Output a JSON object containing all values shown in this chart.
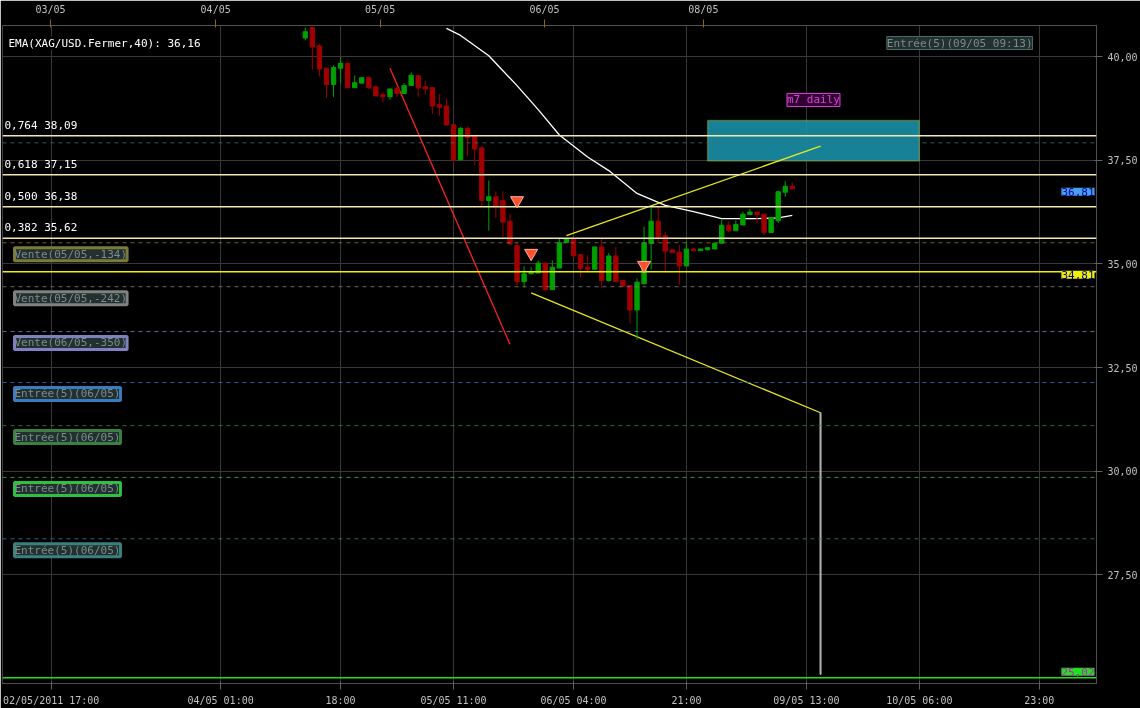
{
  "chart_data": {
    "type": "candlestick",
    "categories": [
      null,
      null,
      null,
      null,
      null,
      null,
      "02/05/2011 17:00",
      null,
      null,
      null,
      null,
      null,
      null,
      null,
      null,
      null,
      null,
      null,
      null,
      null,
      null,
      null,
      null,
      null,
      null,
      null,
      null,
      null,
      null,
      null,
      "04/05 01:00",
      null,
      null,
      null,
      null,
      null,
      null,
      null,
      null,
      null,
      null,
      null,
      null,
      null,
      null,
      null,
      null,
      "18:00",
      null,
      null,
      null,
      null,
      null,
      null,
      null,
      null,
      null,
      null,
      null,
      null,
      null,
      null,
      null,
      "05/05 11:00",
      null,
      null,
      null,
      null,
      null,
      null,
      null,
      null,
      null,
      null,
      null,
      null,
      null,
      null,
      null,
      null,
      "06/05 04:00",
      null,
      null,
      null,
      null,
      null,
      null,
      null,
      null,
      null,
      null,
      null,
      null,
      null,
      null,
      null,
      "21:00",
      null,
      null,
      null,
      null,
      null,
      null,
      null,
      null,
      null,
      null,
      null,
      null,
      null,
      null,
      null,
      null,
      "09/05 13:00",
      null,
      null,
      null,
      null,
      null,
      null,
      null,
      null,
      null,
      null,
      null,
      null,
      null,
      null,
      null,
      "10/05 06:00",
      null,
      null,
      null,
      null,
      null,
      null,
      null,
      null,
      null,
      null,
      null,
      null,
      null,
      null,
      null,
      null,
      "23:00",
      null,
      null,
      null,
      null,
      null,
      null,
      null,
      null
    ],
    "ohlc": [
      null,
      null,
      null,
      null,
      null,
      null,
      null,
      null,
      null,
      null,
      null,
      null,
      null,
      null,
      null,
      null,
      null,
      null,
      null,
      null,
      null,
      null,
      null,
      null,
      null,
      null,
      null,
      null,
      null,
      null,
      null,
      null,
      null,
      null,
      null,
      null,
      null,
      null,
      null,
      null,
      null,
      null,
      [
        40.45,
        40.7,
        40.4,
        40.6
      ],
      [
        40.7,
        40.7,
        39.69,
        40.23
      ],
      [
        40.26,
        40.31,
        39.52,
        39.7
      ],
      [
        39.72,
        39.72,
        39.0,
        39.33
      ],
      [
        39.33,
        39.79,
        39.03,
        39.74
      ],
      [
        39.72,
        39.99,
        39.36,
        39.84
      ],
      [
        39.84,
        39.84,
        39.25,
        39.25
      ],
      [
        39.25,
        39.54,
        39.25,
        39.37
      ],
      [
        39.36,
        39.49,
        39.36,
        39.49
      ],
      [
        39.49,
        39.52,
        39.22,
        39.25
      ],
      [
        39.27,
        39.3,
        39.05,
        39.05
      ],
      [
        39.08,
        39.15,
        38.9,
        39.03
      ],
      [
        39.03,
        39.22,
        38.96,
        39.22
      ],
      [
        39.23,
        39.28,
        39.03,
        39.11
      ],
      [
        39.11,
        39.36,
        39.11,
        39.3
      ],
      [
        39.3,
        39.62,
        39.3,
        39.55
      ],
      [
        39.54,
        39.54,
        39.03,
        39.25
      ],
      [
        39.27,
        39.42,
        39.08,
        39.22
      ],
      [
        39.25,
        39.25,
        38.62,
        38.81
      ],
      [
        38.84,
        39.1,
        38.57,
        38.78
      ],
      [
        38.81,
        38.99,
        38.35,
        38.35
      ],
      [
        38.36,
        38.36,
        37.43,
        37.51
      ],
      [
        37.51,
        38.3,
        37.51,
        38.27
      ],
      [
        38.27,
        38.31,
        37.6,
        38.04
      ],
      [
        38.07,
        38.07,
        37.39,
        37.77
      ],
      [
        37.8,
        37.84,
        36.38,
        36.53
      ],
      [
        36.53,
        37.01,
        35.8,
        36.62
      ],
      [
        36.62,
        36.75,
        36.11,
        36.38
      ],
      [
        36.53,
        36.75,
        35.66,
        36.01
      ],
      [
        36.03,
        36.2,
        35.45,
        35.48
      ],
      [
        35.44,
        35.54,
        34.48,
        34.57
      ],
      [
        34.57,
        34.94,
        34.43,
        34.76
      ],
      [
        34.76,
        34.92,
        34.76,
        34.8
      ],
      [
        34.78,
        35.08,
        34.78,
        35.02
      ],
      [
        35.02,
        35.02,
        34.34,
        34.38
      ],
      [
        34.38,
        35.09,
        34.38,
        34.92
      ],
      [
        34.9,
        35.63,
        34.9,
        35.51
      ],
      [
        35.51,
        35.63,
        35.51,
        35.61
      ],
      [
        35.61,
        35.61,
        35.15,
        35.2
      ],
      [
        35.22,
        35.22,
        34.68,
        34.89
      ],
      [
        34.92,
        35.21,
        34.8,
        34.87
      ],
      [
        34.87,
        35.41,
        34.87,
        35.41
      ],
      [
        35.41,
        35.61,
        34.41,
        34.6
      ],
      [
        34.6,
        35.26,
        34.57,
        35.19
      ],
      [
        35.19,
        35.41,
        34.57,
        34.57
      ],
      [
        34.6,
        34.6,
        34.46,
        34.46
      ],
      [
        34.48,
        34.48,
        33.57,
        33.89
      ],
      [
        33.89,
        34.65,
        33.17,
        34.56
      ],
      [
        34.52,
        35.9,
        34.52,
        35.51
      ],
      [
        35.49,
        36.4,
        34.87,
        36.03
      ],
      [
        36.03,
        36.4,
        35.52,
        35.65
      ],
      [
        35.68,
        35.78,
        34.8,
        35.31
      ],
      [
        35.34,
        35.34,
        35.27,
        35.27
      ],
      [
        35.28,
        35.46,
        34.5,
        34.95
      ],
      [
        34.95,
        35.54,
        34.95,
        35.36
      ],
      [
        35.36,
        35.39,
        35.32,
        35.32
      ],
      [
        35.32,
        35.36,
        35.32,
        35.36
      ],
      [
        35.34,
        35.39,
        35.34,
        35.39
      ],
      [
        35.36,
        35.5,
        35.36,
        35.5
      ],
      [
        35.5,
        36.09,
        35.5,
        35.93
      ],
      [
        35.93,
        36.03,
        35.76,
        35.8
      ],
      [
        35.8,
        36.05,
        35.8,
        35.95
      ],
      [
        35.94,
        36.26,
        35.94,
        36.2
      ],
      [
        36.19,
        36.33,
        36.19,
        36.25
      ],
      [
        36.25,
        36.25,
        35.99,
        36.19
      ],
      [
        36.2,
        36.2,
        35.69,
        35.76
      ],
      [
        35.76,
        36.12,
        35.76,
        36.12
      ],
      [
        36.04,
        36.77,
        35.98,
        36.74
      ],
      [
        36.73,
        37.0,
        36.62,
        36.87
      ],
      [
        36.87,
        36.96,
        36.8,
        36.81
      ],
      null,
      null,
      null,
      null,
      null,
      null,
      null,
      null,
      null,
      null,
      null,
      null,
      null,
      null,
      null,
      null,
      null,
      null,
      null,
      null,
      null,
      null,
      null,
      null,
      null,
      null,
      null,
      null,
      null,
      null,
      null,
      null,
      null,
      null,
      null,
      null,
      null,
      null,
      null,
      null,
      null,
      null,
      null
    ],
    "colors": [
      null,
      null,
      null,
      null,
      null,
      null,
      null,
      null,
      null,
      null,
      null,
      null,
      null,
      null,
      null,
      null,
      null,
      null,
      null,
      null,
      null,
      null,
      null,
      null,
      null,
      null,
      null,
      null,
      null,
      null,
      null,
      null,
      null,
      null,
      null,
      null,
      null,
      null,
      null,
      null,
      null,
      null,
      "#00a000",
      "#a00000",
      "#a00000",
      "#a00000",
      "#00a000",
      "#00a000",
      "#a00000",
      "#00a000",
      "#00a000",
      "#a00000",
      "#a00000",
      "#a00000",
      "#00a000",
      "#a00000",
      "#00a000",
      "#00a000",
      "#a00000",
      "#a00000",
      "#a00000",
      "#a00000",
      "#a00000",
      "#a00000",
      "#00a000",
      "#a00000",
      "#a00000",
      "#a00000",
      "#00a000",
      "#a00000",
      "#a00000",
      "#a00000",
      "#a00000",
      "#00a000",
      "#00a000",
      "#00a000",
      "#a00000",
      "#00a000",
      "#00a000",
      "#00a000",
      "#a00000",
      "#a00000",
      "#a00000",
      "#00a000",
      "#a00000",
      "#00a000",
      "#a00000",
      "#a00000",
      "#a00000",
      "#00a000",
      "#00a000",
      "#00a000",
      "#a00000",
      "#a00000",
      "#a00000",
      "#a00000",
      "#00a000",
      "#a00000",
      "#00a000",
      "#00a000",
      "#00a000",
      "#00a000",
      "#a00000",
      "#00a000",
      "#00a000",
      "#00a000",
      "#a00000",
      "#a00000",
      "#00a000",
      "#00a000",
      "#00a000",
      "#a00000",
      null,
      null,
      null,
      null,
      null,
      null,
      null,
      null,
      null,
      null,
      null,
      null,
      null,
      null,
      null,
      null,
      null,
      null,
      null,
      null,
      null,
      null,
      null,
      null,
      null,
      null,
      null,
      null,
      null,
      null,
      null,
      null,
      null,
      null,
      null,
      null,
      null,
      null,
      null,
      null,
      null,
      null,
      null
    ],
    "series": [
      {
        "type": "line",
        "name": "EMA(XAG/USD.Fermer,40): 36,16",
        "color": "#ffffff",
        "values": [
          null,
          null,
          null,
          null,
          null,
          null,
          null,
          null,
          null,
          null,
          null,
          null,
          null,
          null,
          null,
          null,
          null,
          null,
          null,
          null,
          null,
          null,
          null,
          null,
          null,
          null,
          null,
          null,
          null,
          null,
          null,
          null,
          null,
          null,
          null,
          null,
          null,
          null,
          null,
          null,
          null,
          null,
          null,
          null,
          null,
          null,
          null,
          null,
          null,
          null,
          null,
          null,
          null,
          null,
          null,
          null,
          null,
          null,
          null,
          null,
          null,
          null,
          40.68,
          null,
          40.51,
          null,
          null,
          null,
          40.02,
          null,
          null,
          null,
          39.3,
          null,
          null,
          38.72,
          null,
          null,
          38.11,
          null,
          null,
          null,
          37.58,
          null,
          null,
          37.25,
          null,
          null,
          null,
          36.7,
          null,
          null,
          null,
          36.41,
          null,
          null,
          null,
          36.26,
          null,
          null,
          null,
          36.09,
          null,
          null,
          null,
          null,
          36.09,
          null,
          null,
          36.11,
          null,
          36.17,
          null,
          null,
          null,
          null,
          null,
          null,
          null,
          null,
          null,
          null,
          null,
          null,
          null,
          null,
          null,
          null,
          null,
          null,
          null,
          null,
          null,
          null,
          null,
          null,
          null,
          null,
          null,
          null,
          null,
          null,
          null,
          null,
          null,
          null,
          null,
          null,
          null,
          null,
          null,
          null,
          null,
          null,
          null
        ]
      },
      {
        "type": "line",
        "color": "#ff2020",
        "values": [
          null,
          null,
          null,
          null,
          null,
          null,
          null,
          null,
          null,
          null,
          null,
          null,
          null,
          null,
          null,
          null,
          null,
          null,
          null,
          null,
          null,
          null,
          null,
          null,
          null,
          null,
          null,
          null,
          null,
          null,
          null,
          null,
          null,
          null,
          null,
          null,
          null,
          null,
          null,
          null,
          null,
          null,
          null,
          null,
          null,
          null,
          null,
          null,
          null,
          null,
          null,
          null,
          null,
          null,
          39.72,
          null,
          null,
          null,
          null,
          null,
          null,
          null,
          null,
          null,
          null,
          null,
          null,
          null,
          null,
          null,
          null,
          33.06,
          null,
          null,
          null,
          null,
          null,
          null,
          null,
          null,
          null,
          null,
          null,
          null,
          null,
          null,
          null,
          null,
          null,
          null,
          null,
          null,
          null,
          null,
          null,
          null,
          null,
          null,
          null,
          null,
          null,
          null,
          null,
          null,
          null,
          null,
          null,
          null,
          null,
          null,
          null,
          null,
          null,
          null,
          null,
          null,
          null,
          null,
          null,
          null,
          null,
          null,
          null,
          null,
          null,
          null,
          null,
          null,
          null,
          null,
          null,
          null,
          null,
          null,
          null,
          null,
          null,
          null,
          null,
          null,
          null,
          null,
          null,
          null,
          null,
          null,
          null,
          null,
          null,
          null,
          null,
          null,
          null,
          null,
          null
        ]
      },
      {
        "type": "line",
        "color": "#e8e820",
        "values": [
          null,
          null,
          null,
          null,
          null,
          null,
          null,
          null,
          null,
          null,
          null,
          null,
          null,
          null,
          null,
          null,
          null,
          null,
          null,
          null,
          null,
          null,
          null,
          null,
          null,
          null,
          null,
          null,
          null,
          null,
          null,
          null,
          null,
          null,
          null,
          null,
          null,
          null,
          null,
          null,
          null,
          null,
          null,
          null,
          null,
          null,
          null,
          null,
          null,
          null,
          null,
          null,
          null,
          null,
          null,
          null,
          null,
          null,
          null,
          null,
          null,
          null,
          null,
          null,
          null,
          null,
          null,
          null,
          null,
          null,
          null,
          null,
          null,
          null,
          null,
          null,
          null,
          null,
          null,
          35.68,
          null,
          null,
          null,
          null,
          null,
          null,
          null,
          null,
          null,
          null,
          null,
          null,
          null,
          null,
          null,
          null,
          null,
          null,
          null,
          null,
          null,
          null,
          null,
          null,
          null,
          null,
          null,
          null,
          null,
          null,
          null,
          null,
          null,
          null,
          null,
          37.84,
          null,
          null,
          null,
          null,
          null,
          null,
          null,
          null,
          null,
          null,
          null,
          null,
          null,
          null,
          null,
          null,
          null,
          null,
          null,
          null,
          null,
          null,
          null,
          null,
          null,
          null,
          null,
          null,
          null,
          null,
          null,
          null,
          null,
          null,
          null,
          null,
          null,
          null,
          null
        ]
      },
      {
        "type": "line",
        "color": "#e8e820",
        "values": [
          null,
          null,
          null,
          null,
          null,
          null,
          null,
          null,
          null,
          null,
          null,
          null,
          null,
          null,
          null,
          null,
          null,
          null,
          null,
          null,
          null,
          null,
          null,
          null,
          null,
          null,
          null,
          null,
          null,
          null,
          null,
          null,
          null,
          null,
          null,
          null,
          null,
          null,
          null,
          null,
          null,
          null,
          null,
          null,
          null,
          null,
          null,
          null,
          null,
          null,
          null,
          null,
          null,
          null,
          null,
          null,
          null,
          null,
          null,
          null,
          null,
          null,
          null,
          null,
          null,
          null,
          null,
          null,
          null,
          null,
          null,
          null,
          null,
          null,
          34.3,
          null,
          null,
          null,
          null,
          null,
          null,
          null,
          null,
          null,
          null,
          null,
          null,
          null,
          null,
          null,
          null,
          null,
          null,
          null,
          null,
          null,
          null,
          null,
          null,
          null,
          null,
          null,
          null,
          null,
          null,
          null,
          null,
          null,
          null,
          null,
          null,
          null,
          null,
          null,
          null,
          31.41,
          null,
          null,
          null,
          null,
          null,
          null,
          null,
          null,
          null,
          null,
          null,
          null,
          null,
          null,
          null,
          null,
          null,
          null,
          null,
          null,
          null,
          null,
          null,
          null,
          null,
          null,
          null,
          null,
          null,
          null,
          null,
          null,
          null,
          null,
          null,
          null,
          null,
          null,
          null
        ]
      },
      {
        "type": "bar",
        "color": "#b0b0b0",
        "values": [
          null,
          null,
          null,
          null,
          null,
          null,
          null,
          null,
          null,
          null,
          null,
          null,
          null,
          null,
          null,
          null,
          null,
          null,
          null,
          null,
          null,
          null,
          null,
          null,
          null,
          null,
          null,
          null,
          null,
          null,
          null,
          null,
          null,
          null,
          null,
          null,
          null,
          null,
          null,
          null,
          null,
          null,
          null,
          null,
          null,
          null,
          null,
          null,
          null,
          null,
          null,
          null,
          null,
          null,
          null,
          null,
          null,
          null,
          null,
          null,
          null,
          null,
          null,
          null,
          null,
          null,
          null,
          null,
          null,
          null,
          null,
          null,
          null,
          null,
          null,
          null,
          null,
          null,
          null,
          null,
          null,
          null,
          null,
          null,
          null,
          null,
          null,
          null,
          null,
          null,
          null,
          null,
          null,
          null,
          null,
          null,
          null,
          null,
          null,
          null,
          null,
          null,
          null,
          null,
          null,
          null,
          null,
          null,
          null,
          null,
          null,
          null,
          null,
          null,
          null,
          6.31,
          null,
          null,
          null,
          null,
          null,
          null,
          null,
          null,
          null,
          null,
          null,
          null,
          null,
          null,
          null,
          null,
          null,
          null,
          null,
          null,
          null,
          null,
          null,
          null,
          null,
          null,
          null,
          null,
          null,
          null,
          null,
          null,
          null,
          null,
          null,
          null,
          null,
          null,
          null
        ],
        "base": [
          null,
          null,
          null,
          null,
          null,
          null,
          null,
          null,
          null,
          null,
          null,
          null,
          null,
          null,
          null,
          null,
          null,
          null,
          null,
          null,
          null,
          null,
          null,
          null,
          null,
          null,
          null,
          null,
          null,
          null,
          null,
          null,
          null,
          null,
          null,
          null,
          null,
          null,
          null,
          null,
          null,
          null,
          null,
          null,
          null,
          null,
          null,
          null,
          null,
          null,
          null,
          null,
          null,
          null,
          null,
          null,
          null,
          null,
          null,
          null,
          null,
          null,
          null,
          null,
          null,
          null,
          null,
          null,
          null,
          null,
          null,
          null,
          null,
          null,
          null,
          null,
          null,
          null,
          null,
          null,
          null,
          null,
          null,
          null,
          null,
          null,
          null,
          null,
          null,
          null,
          null,
          null,
          null,
          null,
          null,
          null,
          null,
          null,
          null,
          null,
          null,
          null,
          null,
          null,
          null,
          null,
          null,
          null,
          null,
          null,
          null,
          null,
          null,
          null,
          null,
          25.1,
          null,
          null,
          null,
          null,
          null,
          null,
          null,
          null,
          null,
          null,
          null,
          null,
          null,
          null,
          null,
          null,
          null,
          null,
          null,
          null,
          null,
          null,
          null,
          null,
          null,
          null,
          null,
          null,
          null,
          null,
          null,
          null,
          null,
          null,
          null,
          null,
          null,
          null,
          null
        ]
      },
      {
        "type": "scatter",
        "marker": "triangle",
        "color": "#ff5030",
        "values": [
          null,
          null,
          null,
          null,
          null,
          null,
          null,
          null,
          null,
          null,
          null,
          null,
          null,
          null,
          null,
          null,
          null,
          null,
          null,
          null,
          null,
          null,
          null,
          null,
          null,
          null,
          null,
          null,
          null,
          null,
          null,
          null,
          null,
          null,
          null,
          null,
          null,
          null,
          null,
          null,
          null,
          null,
          null,
          null,
          null,
          null,
          null,
          null,
          null,
          null,
          null,
          null,
          null,
          null,
          null,
          null,
          null,
          null,
          null,
          null,
          null,
          null,
          null,
          null,
          null,
          null,
          null,
          null,
          null,
          null,
          null,
          null,
          36.53,
          null,
          35.26,
          null,
          null,
          null,
          null,
          null,
          null,
          null,
          null,
          null,
          null,
          null,
          null,
          null,
          null,
          null,
          34.97,
          null,
          null,
          null,
          null,
          null,
          null,
          null,
          null,
          null,
          null,
          null,
          null,
          null,
          null,
          null,
          null,
          null,
          null,
          null,
          null,
          null,
          null,
          null,
          null,
          null,
          null,
          null,
          null,
          null,
          null,
          null,
          null,
          null,
          null,
          null,
          null,
          null,
          null,
          null,
          null,
          null,
          null,
          null,
          null,
          null,
          null,
          null,
          null,
          null,
          null,
          null,
          null,
          null,
          null,
          null,
          null,
          null,
          null,
          null,
          null,
          null,
          null,
          null,
          null
        ]
      }
    ],
    "bands": [
      {
        "axis": "y",
        "from": 37.48,
        "to": 38.46,
        "label": "m7 daily",
        "color": "#1a8fa8"
      }
    ],
    "ref_lines": [
      {
        "axis": "y",
        "value": 38.09,
        "label": "0,764 38,09",
        "color": "#f0e8b0",
        "line_style": "solid"
      },
      {
        "axis": "y",
        "value": 37.15,
        "label": "0,618 37,15",
        "color": "#f0e8b0",
        "line_style": "solid"
      },
      {
        "axis": "y",
        "value": 36.38,
        "label": "0,500 36,38",
        "color": "#f0e8b0",
        "line_style": "solid"
      },
      {
        "axis": "y",
        "value": 35.62,
        "label": "0,382 35,62",
        "color": "#f0e8b0",
        "line_style": "solid"
      },
      {
        "axis": "y",
        "value": 34.81,
        "label": null,
        "color": "#f0f000",
        "line_style": "solid"
      },
      {
        "axis": "y",
        "value": 25.02,
        "label": null,
        "color": "#20e020",
        "line_style": "solid"
      },
      {
        "axis": "y",
        "value": 37.92,
        "label": null,
        "color": "#4a6a6a",
        "line_style": "dashed"
      },
      {
        "axis": "y",
        "value": 35.51,
        "label": "Vente(05/05,-134)",
        "color": "#7a7a3a",
        "line_style": "dashed"
      },
      {
        "axis": "y",
        "value": 34.45,
        "label": "Vente(05/05,-242)",
        "color": "#808080",
        "line_style": "dashed"
      },
      {
        "axis": "y",
        "value": 33.37,
        "label": "Vente(06/05,-350)",
        "color": "#8080c0",
        "line_style": "dashed"
      },
      {
        "axis": "y",
        "value": 32.14,
        "label": "Entrée(5)(06/05)",
        "color": "#3a7ac0",
        "line_style": "dashed"
      },
      {
        "axis": "y",
        "value": 31.1,
        "label": "Entrée(5)(06/05)",
        "color": "#3a8040",
        "line_style": "dashed"
      },
      {
        "axis": "y",
        "value": 29.85,
        "label": "Entrée(5)(06/05)",
        "color": "#30c040",
        "line_style": "dashed"
      },
      {
        "axis": "y",
        "value": 28.37,
        "label": "Entrée(5)(06/05)",
        "color": "#3a8080",
        "line_style": "dashed"
      }
    ],
    "annotations": [
      {
        "text": "34,81",
        "y": 34.81
      },
      {
        "text": "25,02",
        "y": 25.02
      },
      "03/05",
      "04/05",
      "05/05",
      "06/05",
      "08/05",
      "36,81",
      "Entrée(5)(09/05 09:13)"
    ],
    "ylim": [
      24.88,
      40.75
    ],
    "yticks": [
      {
        "value": 27.5,
        "label": "27,50"
      },
      {
        "value": 30,
        "label": "30,00"
      },
      {
        "value": 32.5,
        "label": "32,50"
      },
      {
        "value": 35,
        "label": "35,00"
      },
      {
        "value": 37.5,
        "label": "37,50"
      },
      {
        "value": 40,
        "label": "40,00"
      }
    ],
    "grid": true
  }
}
